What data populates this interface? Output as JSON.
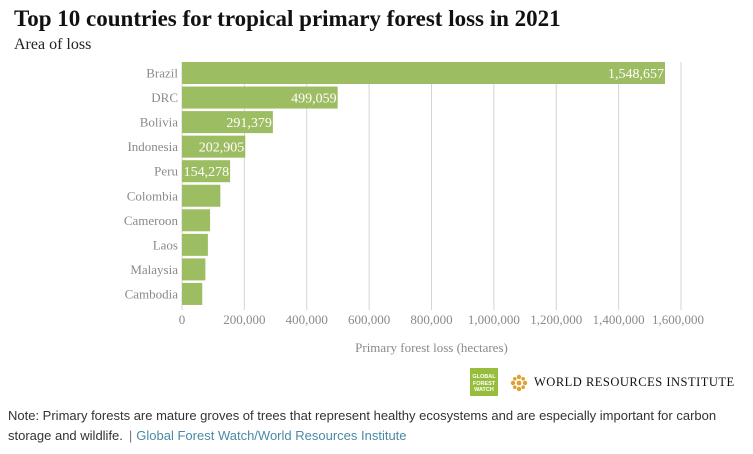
{
  "chart_data": {
    "type": "bar",
    "orientation": "horizontal",
    "title": "Top 10 countries for tropical primary forest loss in 2021",
    "subtitle": "Area of loss",
    "xlabel": "Primary forest loss (hectares)",
    "ylabel": "",
    "categories": [
      "Brazil",
      "DRC",
      "Bolivia",
      "Indonesia",
      "Peru",
      "Colombia",
      "Cameroon",
      "Laos",
      "Malaysia",
      "Cambodia"
    ],
    "values": [
      1548657,
      499059,
      291379,
      202905,
      154278,
      123000,
      90000,
      83000,
      75000,
      65000
    ],
    "data_labels": [
      "1,548,657",
      "499,059",
      "291,379",
      "202,905",
      "154,278",
      "",
      "",
      "",
      "",
      ""
    ],
    "xlim": [
      0,
      1600000
    ],
    "xticks": [
      0,
      200000,
      400000,
      600000,
      800000,
      1000000,
      1200000,
      1400000,
      1600000
    ],
    "xtick_labels": [
      "0",
      "200,000",
      "400,000",
      "600,000",
      "800,000",
      "1,000,000",
      "1,200,000",
      "1,400,000",
      "1,600,000"
    ],
    "grid": "vertical",
    "colors": {
      "bar": "#9dbd63",
      "grid": "#d4d4d4",
      "tick_text": "#8a8a8a",
      "data_label": "#ffffff"
    }
  },
  "logos": {
    "gfw_lines": [
      "GLOBAL",
      "FOREST",
      "WATCH"
    ],
    "wri_text": "WORLD RESOURCES INSTITUTE"
  },
  "footer": {
    "note": "Note: Primary forests are mature groves of trees that represent healthy ecosystems and are especially important for carbon storage and wildlife.",
    "separator": "|",
    "source": "Global Forest Watch/World Resources Institute"
  }
}
